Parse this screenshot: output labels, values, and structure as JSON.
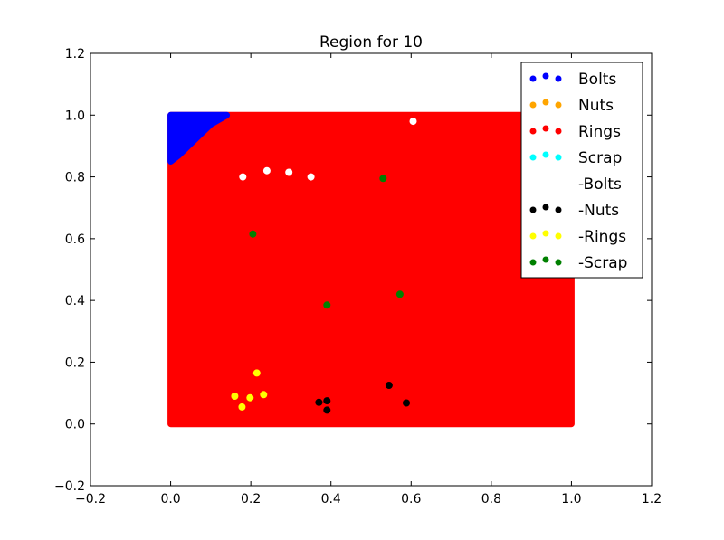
{
  "chart_data": {
    "type": "scatter",
    "title": "Region for 10",
    "xlabel": "",
    "ylabel": "",
    "xlim": [
      -0.2,
      1.2
    ],
    "ylim": [
      -0.2,
      1.2
    ],
    "xticks": [
      "−0.2",
      "0.0",
      "0.2",
      "0.4",
      "0.6",
      "0.8",
      "1.0",
      "1.2"
    ],
    "yticks": [
      "−0.2",
      "0.0",
      "0.2",
      "0.4",
      "0.6",
      "0.8",
      "1.0",
      "1.2"
    ],
    "xtick_values": [
      -0.2,
      0.0,
      0.2,
      0.4,
      0.6,
      0.8,
      1.0,
      1.2
    ],
    "ytick_values": [
      -0.2,
      0.0,
      0.2,
      0.4,
      0.6,
      0.8,
      1.0,
      1.2
    ],
    "grid": false,
    "legend_position": "top-right",
    "regions": [
      {
        "name": "Rings",
        "color": "#ff0000",
        "polygon": [
          [
            0,
            0
          ],
          [
            1,
            0
          ],
          [
            1,
            1
          ],
          [
            0,
            1
          ]
        ]
      },
      {
        "name": "Bolts",
        "color": "#0000ff",
        "polygon": [
          [
            0,
            0.85
          ],
          [
            0,
            1
          ],
          [
            0.14,
            1
          ],
          [
            0.1,
            0.97
          ],
          [
            0.06,
            0.92
          ],
          [
            0.02,
            0.87
          ]
        ]
      }
    ],
    "series": [
      {
        "name": "Bolts",
        "color": "#0000ff",
        "points": []
      },
      {
        "name": "Nuts",
        "color": "#ffa500",
        "points": []
      },
      {
        "name": "Rings",
        "color": "#ff0000",
        "points": []
      },
      {
        "name": "Scrap",
        "color": "#00ffff",
        "points": []
      },
      {
        "name": "-Bolts",
        "color": "#ffffff",
        "points": [
          [
            0.18,
            0.8
          ],
          [
            0.24,
            0.82
          ],
          [
            0.295,
            0.815
          ],
          [
            0.35,
            0.8
          ],
          [
            0.605,
            0.98
          ]
        ]
      },
      {
        "name": "-Nuts",
        "color": "#000000",
        "points": [
          [
            0.37,
            0.07
          ],
          [
            0.39,
            0.075
          ],
          [
            0.39,
            0.045
          ],
          [
            0.545,
            0.125
          ],
          [
            0.588,
            0.068
          ]
        ]
      },
      {
        "name": "-Rings",
        "color": "#ffff00",
        "points": [
          [
            0.16,
            0.09
          ],
          [
            0.178,
            0.055
          ],
          [
            0.198,
            0.085
          ],
          [
            0.215,
            0.165
          ],
          [
            0.232,
            0.095
          ]
        ]
      },
      {
        "name": "-Scrap",
        "color": "#008000",
        "points": [
          [
            0.205,
            0.615
          ],
          [
            0.39,
            0.385
          ],
          [
            0.53,
            0.795
          ],
          [
            0.572,
            0.42
          ]
        ]
      }
    ]
  }
}
